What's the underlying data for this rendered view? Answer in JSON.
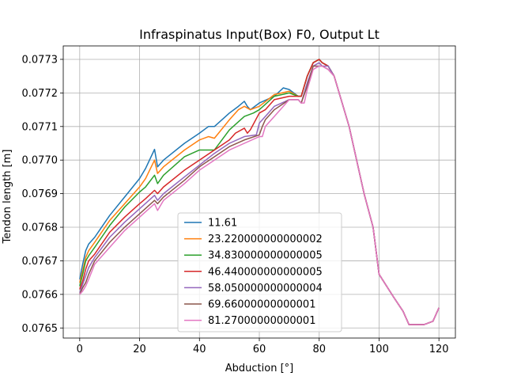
{
  "chart_data": {
    "type": "line",
    "title": "Infraspinatus Input(Box) F0, Output Lt",
    "xlabel": "Abduction [°]",
    "ylabel": "Tendon length [m]",
    "xlim": [
      -5.5,
      125.5
    ],
    "ylim": [
      0.07647,
      0.07734
    ],
    "xticks": [
      0,
      20,
      40,
      60,
      80,
      100,
      120
    ],
    "xtick_labels": [
      "0",
      "20",
      "40",
      "60",
      "80",
      "100",
      "120"
    ],
    "yticks": [
      0.0765,
      0.0766,
      0.0767,
      0.0768,
      0.0769,
      0.077,
      0.0771,
      0.0772,
      0.0773
    ],
    "ytick_labels": [
      "0.0765",
      "0.0766",
      "0.0767",
      "0.0768",
      "0.0769",
      "0.0770",
      "0.0771",
      "0.0772",
      "0.0773"
    ],
    "grid": true,
    "legend_position": "lower-center",
    "series": [
      {
        "name": "11.61",
        "color": "#1f77b4",
        "x": [
          0,
          1,
          2,
          3,
          5,
          10,
          15,
          20,
          22,
          25,
          26,
          28,
          35,
          40,
          43,
          45,
          50,
          53,
          55,
          56,
          57,
          60,
          65,
          68,
          70,
          73,
          74,
          76,
          78,
          80,
          81,
          83,
          85,
          90,
          95,
          98,
          100,
          105,
          108,
          110,
          115,
          118,
          120
        ],
        "y": [
          0.076645,
          0.07669,
          0.07673,
          0.07675,
          0.07677,
          0.076835,
          0.07689,
          0.076945,
          0.076975,
          0.077032,
          0.07698,
          0.077,
          0.07705,
          0.07708,
          0.0771,
          0.0771,
          0.07714,
          0.07716,
          0.077175,
          0.07716,
          0.07715,
          0.07717,
          0.07719,
          0.077215,
          0.07721,
          0.07719,
          0.07719,
          0.07725,
          0.07729,
          0.0773,
          0.07729,
          0.07728,
          0.07725,
          0.0771,
          0.0769,
          0.0768,
          0.07666,
          0.07659,
          0.07655,
          0.07651,
          0.07651,
          0.07652,
          0.07656
        ]
      },
      {
        "name": "23.220000000000002",
        "color": "#ff7f0e",
        "x": [
          0,
          1,
          2,
          3,
          5,
          10,
          15,
          20,
          22,
          25,
          26,
          28,
          35,
          40,
          43,
          45,
          50,
          53,
          55,
          57,
          60,
          65,
          70,
          73,
          74,
          76,
          78,
          80,
          81,
          83,
          85,
          90,
          95,
          98,
          100,
          105,
          108,
          110,
          115,
          118,
          120
        ],
        "y": [
          0.076635,
          0.07667,
          0.07671,
          0.07673,
          0.076755,
          0.07682,
          0.07687,
          0.07692,
          0.076945,
          0.077,
          0.07696,
          0.07698,
          0.07703,
          0.07706,
          0.07707,
          0.077065,
          0.07712,
          0.07715,
          0.07716,
          0.07715,
          0.07716,
          0.077195,
          0.077205,
          0.07719,
          0.07719,
          0.07725,
          0.07729,
          0.0773,
          0.07729,
          0.07728,
          0.07725,
          0.0771,
          0.0769,
          0.0768,
          0.07666,
          0.07659,
          0.07655,
          0.07651,
          0.07651,
          0.07652,
          0.07656
        ]
      },
      {
        "name": "34.830000000000005",
        "color": "#2ca02c",
        "x": [
          0,
          1,
          2,
          3,
          5,
          10,
          15,
          20,
          22,
          25,
          26,
          28,
          35,
          40,
          43,
          45,
          50,
          55,
          58,
          60,
          65,
          70,
          73,
          74,
          76,
          78,
          80,
          81,
          83,
          85,
          90,
          95,
          98,
          100,
          105,
          108,
          110,
          115,
          118,
          120
        ],
        "y": [
          0.076625,
          0.07666,
          0.0767,
          0.076715,
          0.07674,
          0.076805,
          0.07686,
          0.076905,
          0.07692,
          0.076955,
          0.07693,
          0.076955,
          0.07701,
          0.07703,
          0.07703,
          0.07703,
          0.07709,
          0.07713,
          0.07714,
          0.07715,
          0.07719,
          0.0772,
          0.07719,
          0.07719,
          0.07725,
          0.07729,
          0.0773,
          0.07729,
          0.07728,
          0.07725,
          0.0771,
          0.0769,
          0.0768,
          0.07666,
          0.07659,
          0.07655,
          0.07651,
          0.07651,
          0.07652,
          0.07656
        ]
      },
      {
        "name": "46.440000000000005",
        "color": "#d62728",
        "x": [
          0,
          1,
          2,
          3,
          5,
          10,
          15,
          20,
          22,
          25,
          26,
          28,
          35,
          40,
          45,
          50,
          52,
          55,
          56,
          57,
          60,
          62,
          65,
          70,
          73,
          74,
          76,
          78,
          80,
          81,
          83,
          85,
          90,
          95,
          98,
          100,
          105,
          108,
          110,
          115,
          118,
          120
        ],
        "y": [
          0.076615,
          0.07664,
          0.076675,
          0.0767,
          0.07672,
          0.076785,
          0.07683,
          0.07687,
          0.076885,
          0.07691,
          0.0769,
          0.07692,
          0.07697,
          0.077,
          0.07703,
          0.07706,
          0.07708,
          0.077095,
          0.07708,
          0.07709,
          0.07714,
          0.07715,
          0.07718,
          0.07719,
          0.07719,
          0.07719,
          0.07725,
          0.07729,
          0.0773,
          0.07729,
          0.07728,
          0.07725,
          0.0771,
          0.0769,
          0.0768,
          0.07666,
          0.07659,
          0.07655,
          0.07651,
          0.07651,
          0.07652,
          0.07656
        ]
      },
      {
        "name": "58.050000000000004",
        "color": "#9467bd",
        "x": [
          0,
          1,
          2,
          3,
          5,
          10,
          15,
          20,
          25,
          26,
          28,
          35,
          40,
          45,
          50,
          55,
          59,
          60,
          62,
          65,
          70,
          73,
          74,
          76,
          78,
          80,
          81,
          83,
          85,
          90,
          95,
          98,
          100,
          105,
          108,
          110,
          115,
          118,
          120
        ],
        "y": [
          0.076605,
          0.07663,
          0.076655,
          0.07668,
          0.07671,
          0.07677,
          0.076815,
          0.076855,
          0.076895,
          0.07688,
          0.0769,
          0.07695,
          0.076985,
          0.07702,
          0.07705,
          0.07707,
          0.077075,
          0.07711,
          0.07713,
          0.07716,
          0.07718,
          0.07718,
          0.07717,
          0.07723,
          0.07728,
          0.07729,
          0.07728,
          0.07728,
          0.07725,
          0.0771,
          0.0769,
          0.0768,
          0.07666,
          0.07659,
          0.07655,
          0.07651,
          0.07651,
          0.07652,
          0.07656
        ]
      },
      {
        "name": "69.66000000000001",
        "color": "#8c564b",
        "x": [
          0,
          1,
          2,
          3,
          5,
          10,
          15,
          20,
          25,
          26,
          28,
          35,
          40,
          45,
          50,
          55,
          60,
          61,
          62,
          65,
          70,
          73,
          74,
          76,
          78,
          80,
          81,
          83,
          85,
          90,
          95,
          98,
          100,
          105,
          108,
          110,
          115,
          118,
          120
        ],
        "y": [
          0.0766,
          0.07662,
          0.076635,
          0.07666,
          0.0767,
          0.076755,
          0.0768,
          0.07684,
          0.07688,
          0.07687,
          0.07689,
          0.07694,
          0.07698,
          0.07701,
          0.07704,
          0.07706,
          0.077075,
          0.0771,
          0.07712,
          0.07715,
          0.07718,
          0.07718,
          0.07717,
          0.07722,
          0.07728,
          0.07728,
          0.07728,
          0.07727,
          0.07725,
          0.0771,
          0.0769,
          0.0768,
          0.07666,
          0.07659,
          0.07655,
          0.07651,
          0.07651,
          0.07652,
          0.07656
        ]
      },
      {
        "name": "81.27000000000001",
        "color": "#e377c2",
        "x": [
          0,
          1,
          2,
          3,
          5,
          10,
          15,
          20,
          25,
          26,
          28,
          35,
          40,
          45,
          50,
          55,
          60,
          61,
          62,
          65,
          70,
          73,
          74,
          75,
          76,
          78,
          80,
          81,
          83,
          85,
          90,
          95,
          98,
          100,
          105,
          108,
          110,
          115,
          118,
          120
        ],
        "y": [
          0.0766,
          0.07661,
          0.076625,
          0.076645,
          0.07669,
          0.07674,
          0.07679,
          0.07683,
          0.07687,
          0.07685,
          0.07688,
          0.07693,
          0.07697,
          0.077,
          0.07703,
          0.07705,
          0.07707,
          0.07707,
          0.0771,
          0.07713,
          0.07718,
          0.07718,
          0.07717,
          0.07717,
          0.07721,
          0.07727,
          0.07728,
          0.07728,
          0.07727,
          0.07725,
          0.0771,
          0.0769,
          0.0768,
          0.07666,
          0.07659,
          0.07655,
          0.07651,
          0.07651,
          0.07652,
          0.07656
        ]
      }
    ]
  }
}
